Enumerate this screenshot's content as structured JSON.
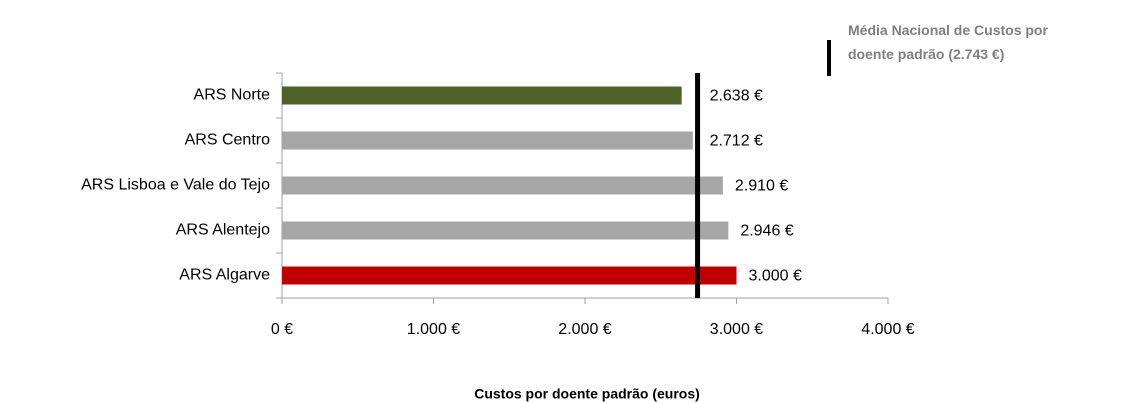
{
  "chart_data": {
    "type": "hbar",
    "categories": [
      "ARS Norte",
      "ARS Centro",
      "ARS Lisboa e Vale do Tejo",
      "ARS Alentejo",
      "ARS Algarve"
    ],
    "values": [
      2638,
      2712,
      2910,
      2946,
      3000
    ],
    "value_labels": [
      "2.638 €",
      "2.712 €",
      "2.910 €",
      "2.946 €",
      "3.000 €"
    ],
    "colors": [
      "#4f6228",
      "#a6a6a6",
      "#a6a6a6",
      "#a6a6a6",
      "#c00000"
    ],
    "xlim": [
      0,
      4000
    ],
    "xticks": [
      {
        "value": 0,
        "label": "0 €"
      },
      {
        "value": 1000,
        "label": "1.000 €"
      },
      {
        "value": 2000,
        "label": "2.000 €"
      },
      {
        "value": 3000,
        "label": "3.000 €"
      },
      {
        "value": 4000,
        "label": "4.000 €"
      }
    ],
    "xlabel": "Custos por doente padrão (euros)",
    "reference_line": {
      "value": 2743,
      "label": "Média Nacional de Custos por doente padrão (2.743 €)",
      "color": "#000000"
    }
  }
}
